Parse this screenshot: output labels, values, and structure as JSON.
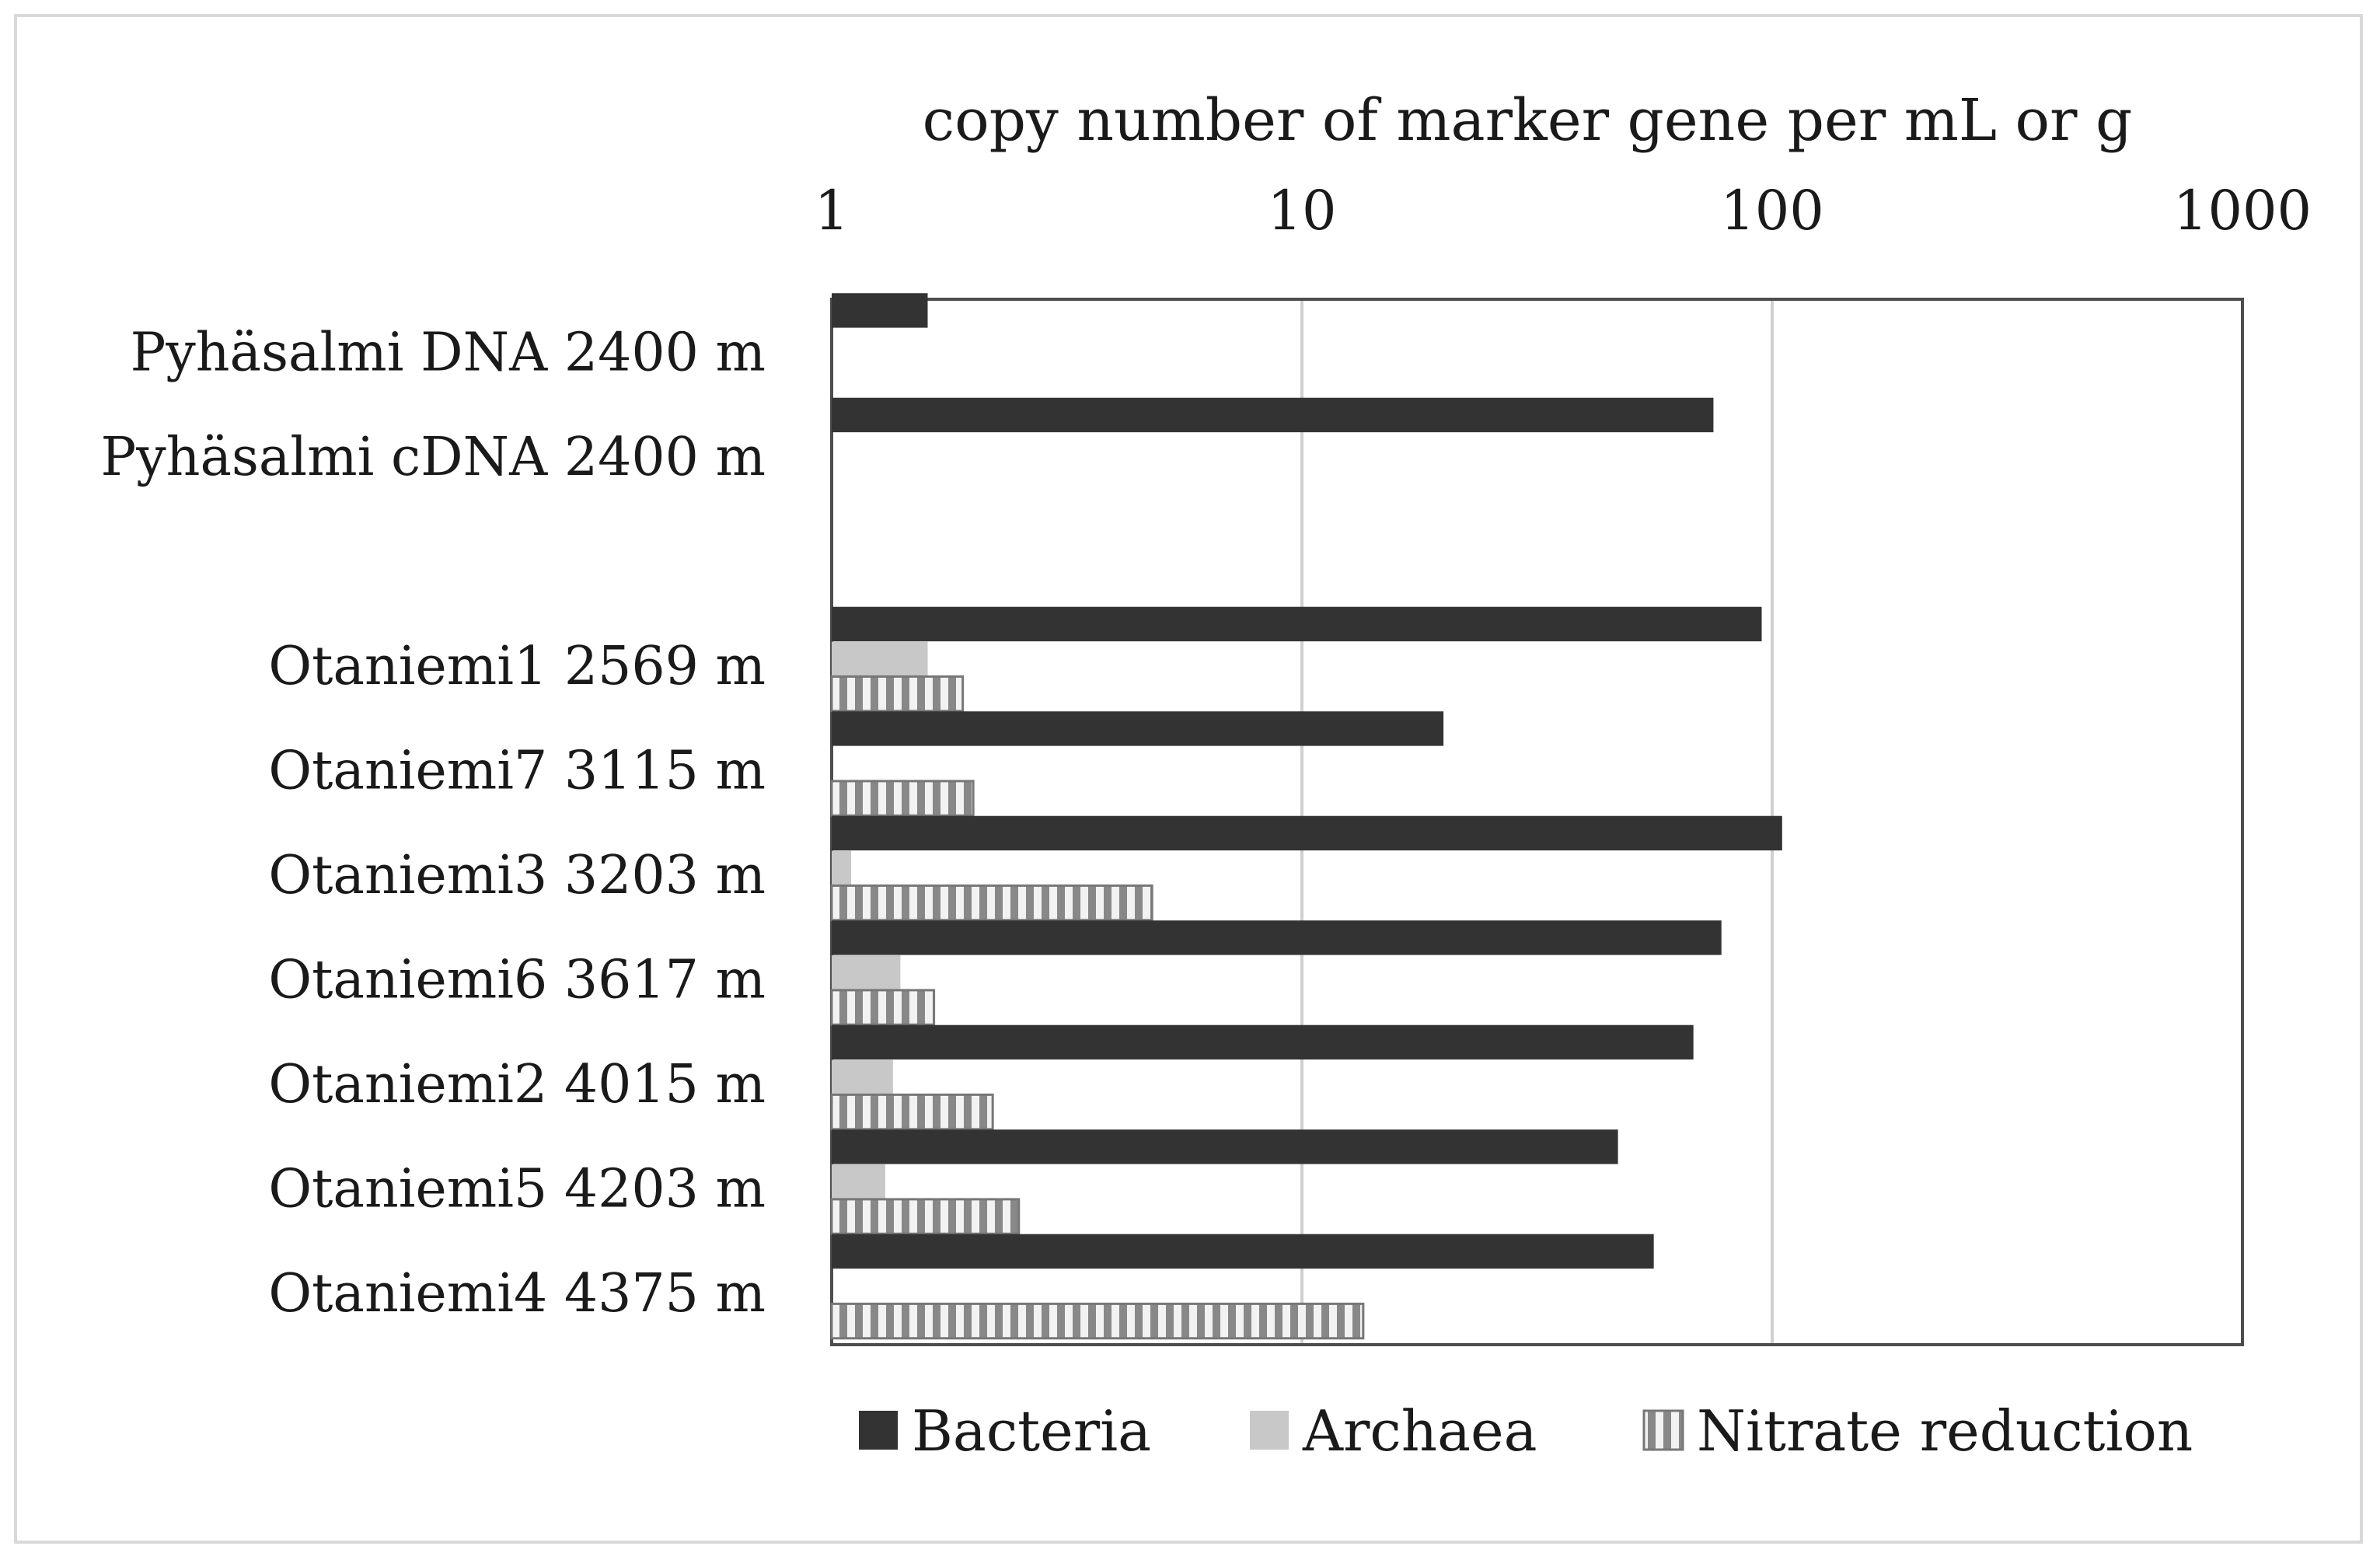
{
  "chart_data": {
    "type": "bar",
    "orientation": "horizontal",
    "x_scale": "log",
    "xlabel": "copy number of marker gene per mL or g",
    "xlim": [
      1,
      1000
    ],
    "x_ticks": [
      "1",
      "10",
      "100",
      "1000"
    ],
    "grid": "vertical major gridlines",
    "legend_position": "bottom",
    "colors": {
      "Bacteria": "#333333",
      "Archaea": "#c8c8c8",
      "Nitrate reduction": "#888888"
    },
    "categories": [
      "Pyhäsalmi DNA 2400 m",
      "Pyhäsalmi cDNA 2400 m",
      "",
      "Otaniemi1 2569 m",
      "Otaniemi7 3115 m",
      "Otaniemi3 3203 m",
      "Otaniemi6 3617 m",
      "Otaniemi2 4015 m",
      "Otaniemi5 4203 m",
      "Otaniemi4 4375 m"
    ],
    "series": [
      {
        "name": "Bacteria",
        "pattern": "solid",
        "values": [
          1.6,
          75,
          null,
          95,
          20,
          105,
          78,
          68,
          47,
          56
        ]
      },
      {
        "name": "Archaea",
        "pattern": "solid",
        "values": [
          null,
          null,
          null,
          1.6,
          null,
          1.1,
          1.4,
          1.35,
          1.3,
          null
        ]
      },
      {
        "name": "Nitrate reduction",
        "pattern": "vertical-stripes",
        "values": [
          null,
          null,
          null,
          1.9,
          2.0,
          4.8,
          1.65,
          2.2,
          2.5,
          13.5
        ]
      }
    ]
  }
}
